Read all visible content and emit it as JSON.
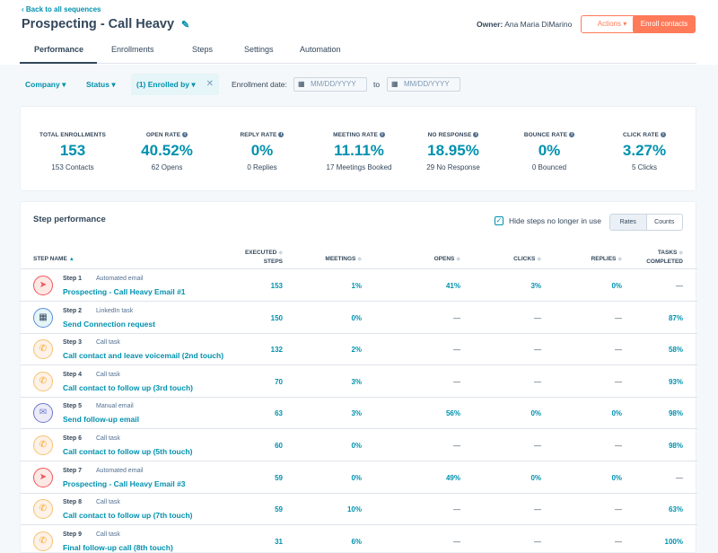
{
  "header": {
    "back_link": "‹ Back to all sequences",
    "title": "Prospecting - Call Heavy",
    "owner_label": "Owner:",
    "owner_name": "Ana Maria DiMarino",
    "actions_label": "Actions ▾",
    "enroll_label": "Enroll contacts"
  },
  "tabs": [
    "Performance",
    "Enrollments",
    "Steps",
    "Settings",
    "Automation"
  ],
  "filters": {
    "company": "Company ▾",
    "status": "Status ▾",
    "enrolled_by": "(1) Enrolled by ▾",
    "clear": "✕",
    "enrollment_date_label": "Enrollment date:",
    "date_from_placeholder": "MM/DD/YYYY",
    "to_label": "to",
    "date_to_placeholder": "MM/DD/YYYY"
  },
  "stats": [
    {
      "label": "TOTAL ENROLLMENTS",
      "value": "153",
      "sub": "153 Contacts",
      "info": false
    },
    {
      "label": "OPEN RATE",
      "value": "40.52%",
      "sub": "62 Opens",
      "info": true
    },
    {
      "label": "REPLY RATE",
      "value": "0%",
      "sub": "0 Replies",
      "info": true
    },
    {
      "label": "MEETING RATE",
      "value": "11.11%",
      "sub": "17 Meetings Booked",
      "info": true
    },
    {
      "label": "NO RESPONSE",
      "value": "18.95%",
      "sub": "29 No Response",
      "info": true
    },
    {
      "label": "BOUNCE RATE",
      "value": "0%",
      "sub": "0 Bounced",
      "info": true
    },
    {
      "label": "CLICK RATE",
      "value": "3.27%",
      "sub": "5 Clicks",
      "info": true
    }
  ],
  "step_performance": {
    "title": "Step performance",
    "hide_label": "Hide steps no longer in use",
    "toggle": [
      "Rates",
      "Counts"
    ],
    "columns": {
      "step_name": "STEP NAME",
      "executed_1": "EXECUTED",
      "executed_2": "STEPS",
      "meetings": "MEETINGS",
      "opens": "OPENS",
      "clicks": "CLICKS",
      "replies": "REPLIES",
      "tasks_1": "TASKS",
      "tasks_2": "COMPLETED"
    },
    "rows": [
      {
        "num": "Step 1",
        "type": "Automated email",
        "name": "Prospecting - Call Heavy Email #1",
        "icon": "auto",
        "executed": "153",
        "meetings": "1%",
        "opens": "41%",
        "clicks": "3%",
        "replies": "0%",
        "tasks": "—"
      },
      {
        "num": "Step 2",
        "type": "LinkedIn task",
        "name": "Send Connection request",
        "icon": "link",
        "executed": "150",
        "meetings": "0%",
        "opens": "—",
        "clicks": "—",
        "replies": "—",
        "tasks": "87%"
      },
      {
        "num": "Step 3",
        "type": "Call task",
        "name": "Call contact and leave voicemail (2nd touch)",
        "icon": "call",
        "executed": "132",
        "meetings": "2%",
        "opens": "—",
        "clicks": "—",
        "replies": "—",
        "tasks": "58%"
      },
      {
        "num": "Step 4",
        "type": "Call task",
        "name": "Call contact to follow up (3rd touch)",
        "icon": "call",
        "executed": "70",
        "meetings": "3%",
        "opens": "—",
        "clicks": "—",
        "replies": "—",
        "tasks": "93%"
      },
      {
        "num": "Step 5",
        "type": "Manual email",
        "name": "Send follow-up email",
        "icon": "man",
        "executed": "63",
        "meetings": "3%",
        "opens": "56%",
        "clicks": "0%",
        "replies": "0%",
        "tasks": "98%"
      },
      {
        "num": "Step 6",
        "type": "Call task",
        "name": "Call contact to follow up (5th touch)",
        "icon": "call",
        "executed": "60",
        "meetings": "0%",
        "opens": "—",
        "clicks": "—",
        "replies": "—",
        "tasks": "98%"
      },
      {
        "num": "Step 7",
        "type": "Automated email",
        "name": "Prospecting - Call Heavy Email #3",
        "icon": "auto",
        "executed": "59",
        "meetings": "0%",
        "opens": "49%",
        "clicks": "0%",
        "replies": "0%",
        "tasks": "—"
      },
      {
        "num": "Step 8",
        "type": "Call task",
        "name": "Call contact to follow up (7th touch)",
        "icon": "call",
        "executed": "59",
        "meetings": "10%",
        "opens": "—",
        "clicks": "—",
        "replies": "—",
        "tasks": "63%"
      },
      {
        "num": "Step 9",
        "type": "Call task",
        "name": "Final follow-up call (8th touch)",
        "icon": "call",
        "executed": "31",
        "meetings": "6%",
        "opens": "—",
        "clicks": "—",
        "replies": "—",
        "tasks": "100%"
      }
    ]
  },
  "icons": {
    "auto": "➤",
    "link": "▦",
    "call": "✆",
    "man": "✉"
  }
}
